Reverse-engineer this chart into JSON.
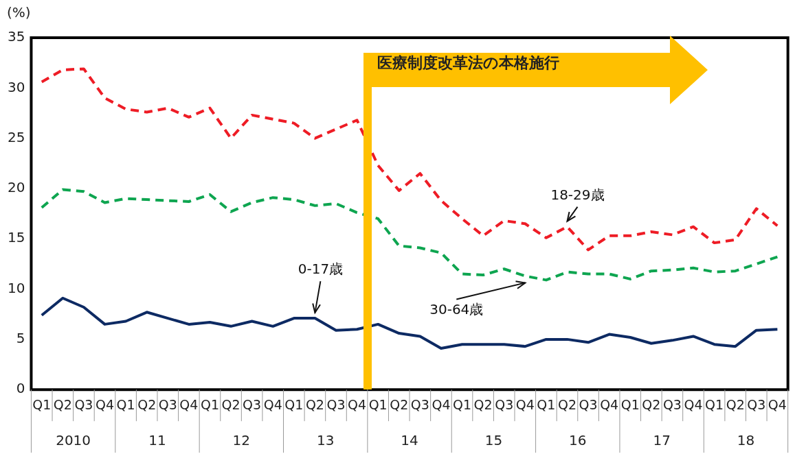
{
  "chart_data": {
    "type": "line",
    "ylabel": "(%)",
    "categories": [
      "Q1",
      "Q2",
      "Q3",
      "Q4",
      "Q1",
      "Q2",
      "Q3",
      "Q4",
      "Q1",
      "Q2",
      "Q3",
      "Q4",
      "Q1",
      "Q2",
      "Q3",
      "Q4",
      "Q1",
      "Q2",
      "Q3",
      "Q4",
      "Q1",
      "Q2",
      "Q3",
      "Q4",
      "Q1",
      "Q2",
      "Q3",
      "Q4",
      "Q1",
      "Q2",
      "Q3",
      "Q4",
      "Q1",
      "Q2",
      "Q3",
      "Q4"
    ],
    "series": [
      {
        "name": "0-17歳",
        "color": "#0d2a63",
        "line_style": "solid",
        "values": [
          7.4,
          9.1,
          8.2,
          6.5,
          6.8,
          7.7,
          7.1,
          6.5,
          6.7,
          6.3,
          6.8,
          6.3,
          7.1,
          7.1,
          5.9,
          6.0,
          6.5,
          5.6,
          5.3,
          4.1,
          4.5,
          4.5,
          4.5,
          4.3,
          5.0,
          5.0,
          4.7,
          5.5,
          5.2,
          4.6,
          4.9,
          5.3,
          4.5,
          4.3,
          5.9,
          6.0
        ]
      },
      {
        "name": "18-29歳",
        "color": "#ee1c25",
        "line_style": "dashed",
        "values": [
          30.6,
          31.8,
          31.9,
          29.0,
          27.9,
          27.6,
          28.0,
          27.1,
          28.0,
          25.0,
          27.3,
          26.9,
          26.5,
          25.0,
          25.9,
          26.8,
          22.3,
          19.8,
          21.5,
          18.8,
          17.0,
          15.3,
          16.8,
          16.5,
          15.1,
          16.2,
          13.9,
          15.3,
          15.3,
          15.7,
          15.4,
          16.2,
          14.6,
          14.9,
          18.0,
          16.3
        ]
      },
      {
        "name": "30-64歳",
        "color": "#0ea550",
        "line_style": "dashed",
        "values": [
          18.1,
          19.9,
          19.7,
          18.6,
          19.0,
          18.9,
          18.8,
          18.7,
          19.4,
          17.7,
          18.6,
          19.1,
          18.9,
          18.3,
          18.5,
          17.6,
          17.0,
          14.3,
          14.1,
          13.6,
          11.5,
          11.4,
          12.0,
          11.3,
          10.9,
          11.7,
          11.5,
          11.5,
          11.0,
          11.8,
          11.9,
          12.1,
          11.7,
          11.8,
          12.5,
          13.2
        ]
      }
    ],
    "ylim": [
      0,
      35
    ],
    "yticks": [
      0,
      5,
      10,
      15,
      20,
      25,
      30,
      35
    ],
    "grid": false,
    "legend": false,
    "marker": "none",
    "annotations": [
      "医療制度改革法の本格施行",
      "2010",
      "11",
      "12",
      "13",
      "14",
      "15",
      "16",
      "17",
      "18"
    ]
  }
}
